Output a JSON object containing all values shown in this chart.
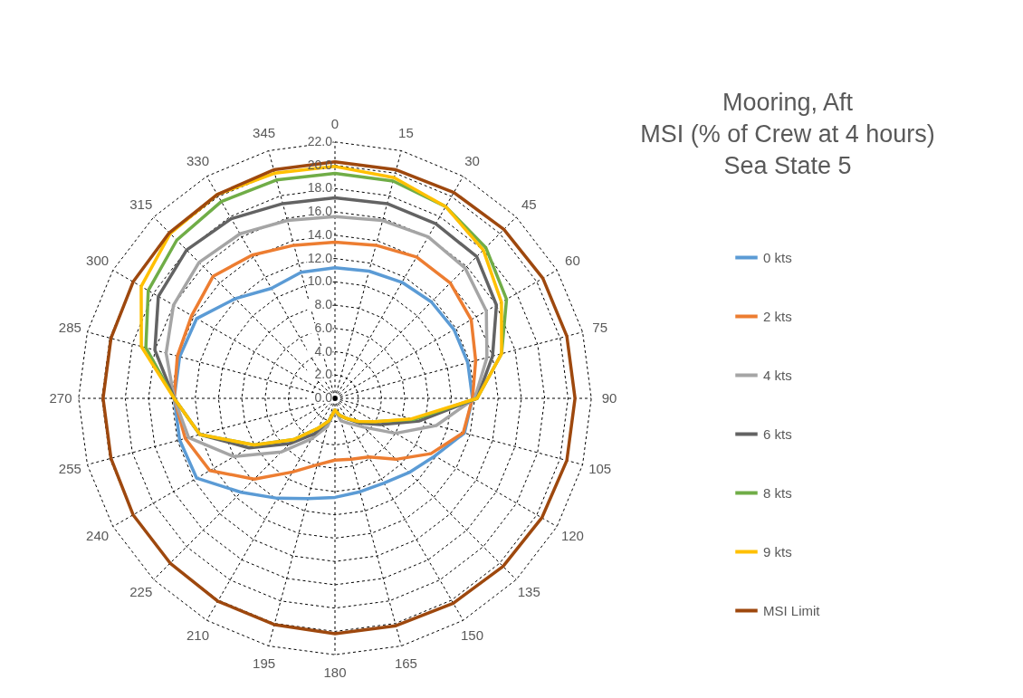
{
  "chart_data": {
    "type": "radar",
    "title": [
      "Mooring, Aft",
      "MSI (% of Crew at 4 hours)",
      "Sea State 5"
    ],
    "categories": [
      "0",
      "15",
      "30",
      "45",
      "60",
      "75",
      "90",
      "105",
      "120",
      "135",
      "150",
      "165",
      "180",
      "195",
      "210",
      "225",
      "240",
      "255",
      "270",
      "285",
      "300",
      "315",
      "330",
      "345"
    ],
    "ylim": [
      0,
      22
    ],
    "yticks": [
      {
        "value": 0,
        "label": "0.0"
      },
      {
        "value": 2,
        "label": "2.0"
      },
      {
        "value": 4,
        "label": "4.0"
      },
      {
        "value": 6,
        "label": "6.0"
      },
      {
        "value": 8,
        "label": "8.0"
      },
      {
        "value": 10,
        "label": "10.0"
      },
      {
        "value": 12,
        "label": "12.0"
      },
      {
        "value": 14,
        "label": "14.0"
      },
      {
        "value": 16,
        "label": "16.0"
      },
      {
        "value": 18,
        "label": "18.0"
      },
      {
        "value": 20,
        "label": "20.0"
      },
      {
        "value": 22,
        "label": "22.0"
      }
    ],
    "grid": true,
    "legend": "right",
    "series": [
      {
        "name": "0 kts",
        "color": "#5b9bd5",
        "values": [
          11.2,
          11.3,
          11.5,
          11.7,
          11.8,
          11.8,
          11.8,
          11.5,
          9.9,
          9,
          8.4,
          8.3,
          8.5,
          8.9,
          9.9,
          11.4,
          13.7,
          13.8,
          13.8,
          13.8,
          13.7,
          12.1,
          10.9,
          11.2
        ]
      },
      {
        "name": "2 kts",
        "color": "#ed7d31",
        "values": [
          13.4,
          13.6,
          14,
          14,
          13.5,
          12.5,
          11.8,
          11.4,
          9.5,
          7.4,
          5.8,
          5.4,
          5.3,
          5.9,
          7.3,
          9.8,
          12.4,
          13.3,
          13.8,
          14,
          14.2,
          14.8,
          14.2,
          13.6
        ]
      },
      {
        "name": "4 kts",
        "color": "#a5a5a5",
        "values": [
          15.6,
          15.8,
          16,
          15.8,
          15,
          13.5,
          12,
          9,
          6,
          3.5,
          2.5,
          2,
          1,
          2.5,
          4,
          6.5,
          10,
          13,
          13.8,
          15,
          16,
          16.5,
          16.3,
          15.8
        ]
      },
      {
        "name": "6 kts",
        "color": "#636363",
        "values": [
          17.2,
          17.3,
          17.3,
          17.2,
          16,
          14,
          12.2,
          7.5,
          4.5,
          3,
          2,
          1.5,
          1,
          2,
          3.5,
          5.5,
          8.5,
          12,
          13.8,
          16,
          17.5,
          18,
          17.8,
          17.3
        ]
      },
      {
        "name": "8 kts",
        "color": "#70ad47",
        "values": [
          19.3,
          19.3,
          19,
          18.3,
          17,
          14.8,
          12.2,
          7,
          4,
          2.8,
          2,
          1.5,
          1,
          2,
          3,
          5,
          8,
          12,
          13.8,
          16.8,
          18.5,
          19.2,
          19.5,
          19.4
        ]
      },
      {
        "name": "9 kts",
        "color": "#ffc000",
        "values": [
          19.9,
          19.6,
          19,
          18,
          16.5,
          14.8,
          12.2,
          6.8,
          4,
          2.8,
          2,
          1.5,
          1,
          2,
          3,
          5,
          8,
          12,
          13.8,
          17.2,
          19.2,
          20,
          20.2,
          20
        ]
      },
      {
        "name": "MSI Limit",
        "color": "#9e480e",
        "values": [
          20.3,
          20.3,
          20.4,
          20.5,
          20.6,
          20.6,
          20.6,
          20.6,
          20.5,
          20.4,
          20.3,
          20.2,
          20.2,
          20.1,
          20.1,
          20,
          20,
          19.9,
          19.9,
          19.9,
          20,
          20.1,
          20.2,
          20.3
        ]
      }
    ]
  }
}
